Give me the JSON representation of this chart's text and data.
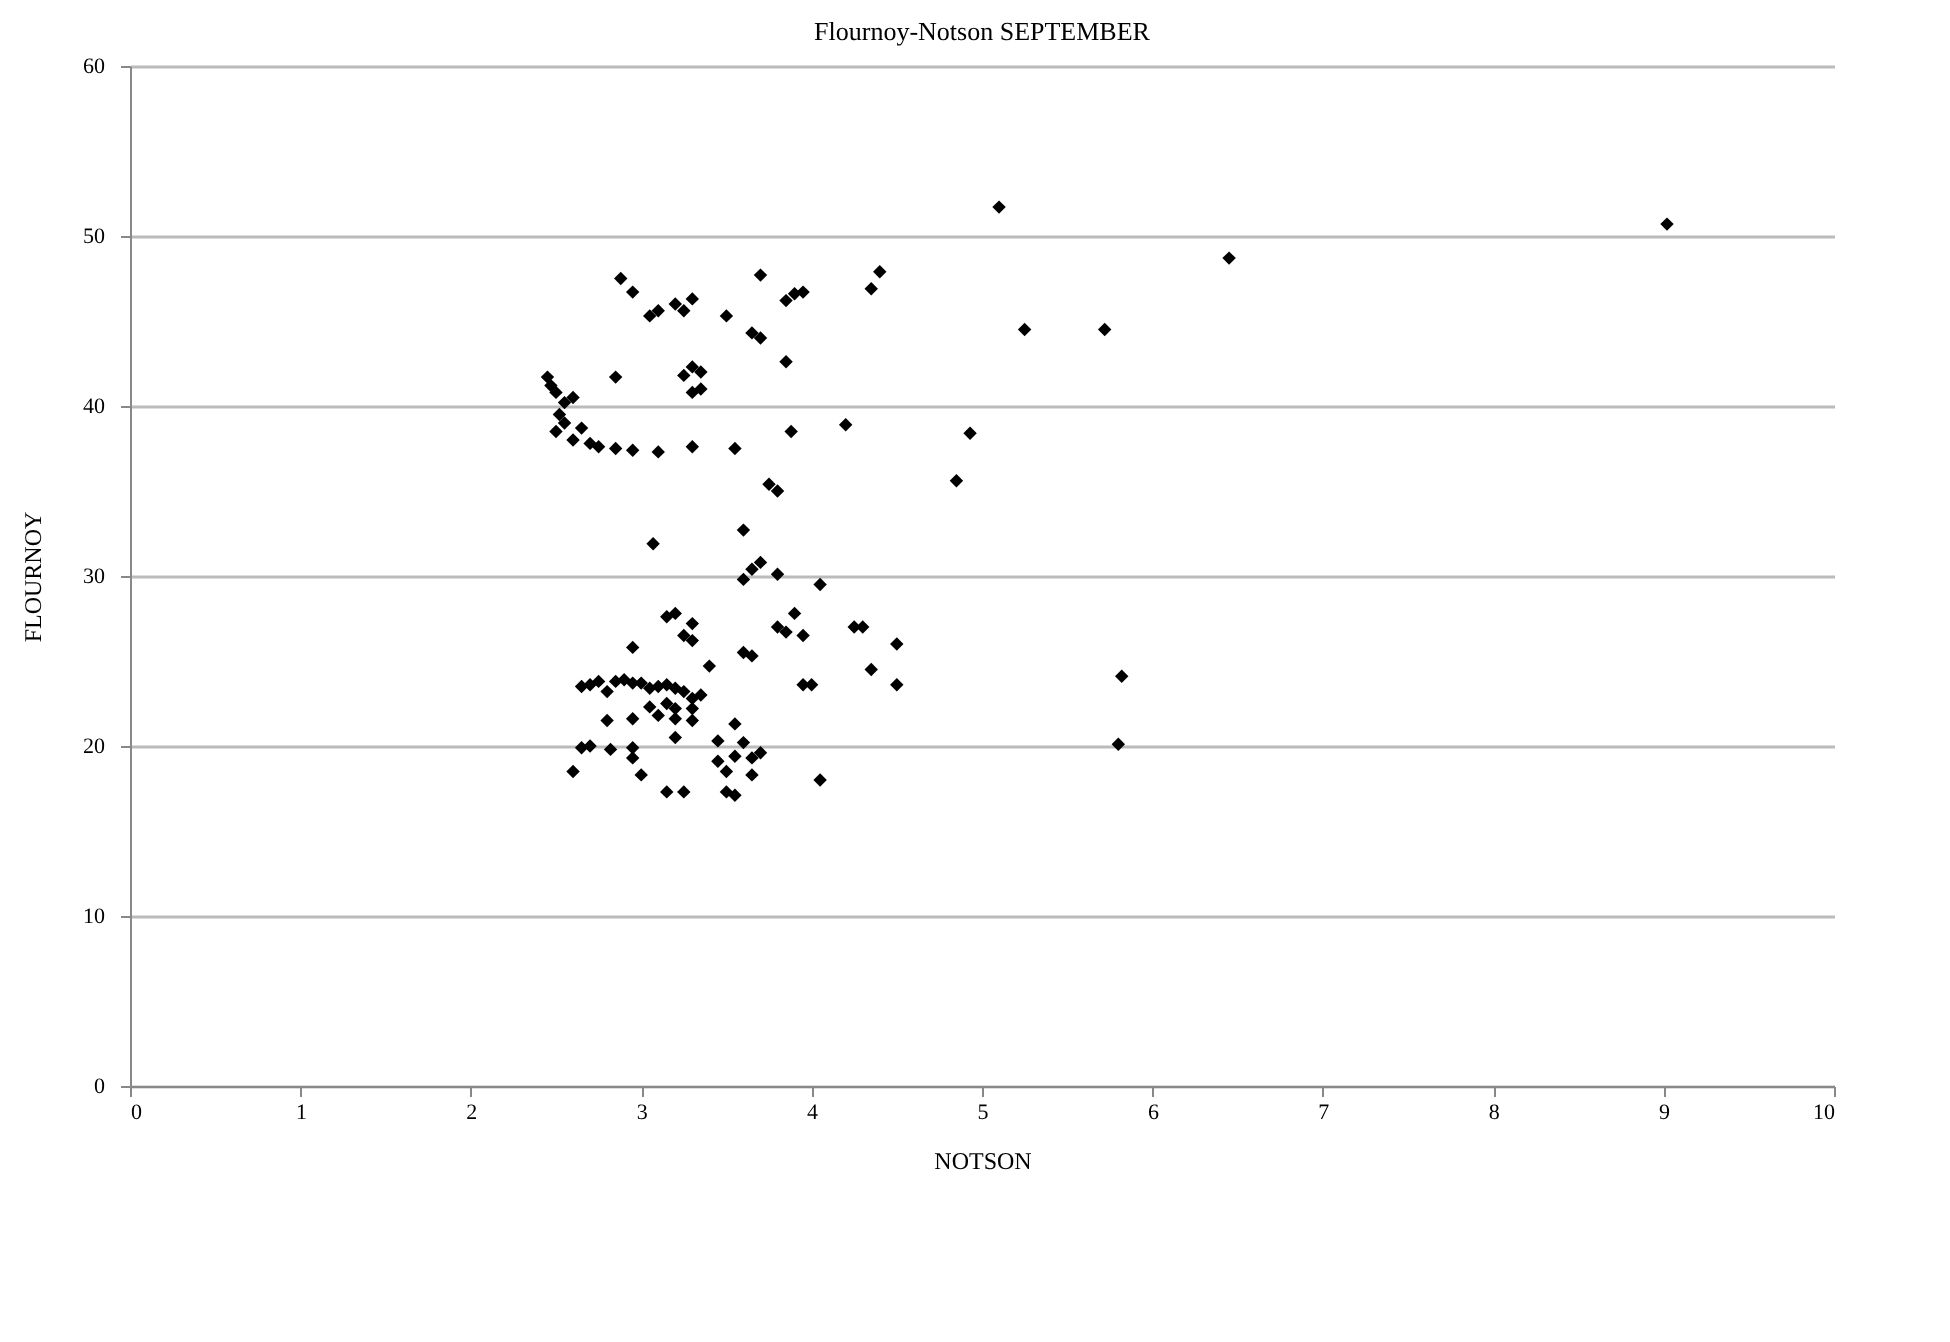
{
  "chart_data": {
    "type": "scatter",
    "title": "Flournoy-Notson  SEPTEMBER",
    "xlabel": "NOTSON",
    "ylabel": "FLOURNOY",
    "xlim": [
      0,
      10
    ],
    "xticks": [
      0,
      1,
      2,
      3,
      4,
      5,
      6,
      7,
      8,
      9,
      10
    ],
    "ylim": [
      0,
      60
    ],
    "yticks": [
      0,
      10,
      20,
      30,
      40,
      50,
      60
    ],
    "grid": "y",
    "marker": "diamond",
    "legend": false,
    "series": [
      {
        "color": "#000000",
        "x": [
          2.45,
          2.47,
          2.5,
          2.55,
          2.6,
          2.52,
          2.5,
          2.55,
          2.6,
          2.65,
          2.7,
          2.75,
          2.85,
          2.95,
          3.1,
          3.3,
          3.55,
          2.85,
          2.88,
          2.95,
          3.05,
          3.1,
          3.2,
          3.25,
          3.3,
          3.25,
          3.3,
          3.35,
          3.35,
          3.3,
          3.5,
          3.65,
          3.7,
          3.7,
          3.85,
          3.9,
          3.95,
          3.85,
          3.88,
          3.75,
          3.8,
          4.2,
          4.35,
          4.4,
          4.85,
          4.93,
          5.1,
          5.25,
          5.72,
          6.45,
          9.02,
          3.07,
          3.6,
          3.6,
          3.65,
          3.7,
          3.8,
          4.05,
          3.8,
          3.85,
          3.9,
          3.95,
          4.25,
          4.3,
          4.5,
          4.35,
          4.5,
          3.95,
          4.0,
          3.6,
          3.65,
          3.4,
          3.15,
          3.2,
          3.25,
          3.3,
          3.3,
          2.95,
          5.82,
          5.8,
          4.05,
          2.65,
          2.7,
          2.75,
          2.8,
          2.85,
          2.9,
          2.95,
          3.0,
          3.05,
          3.1,
          3.15,
          3.2,
          3.25,
          3.3,
          3.15,
          3.2,
          3.3,
          3.35,
          3.05,
          3.1,
          2.8,
          2.95,
          3.2,
          3.3,
          3.55,
          2.65,
          2.7,
          2.6,
          2.82,
          2.95,
          2.95,
          3.0,
          3.15,
          3.25,
          3.45,
          3.5,
          3.5,
          3.55,
          3.55,
          3.6,
          3.65,
          3.65,
          3.7,
          3.2,
          3.45
        ],
        "values": [
          41.7,
          41.2,
          40.8,
          40.2,
          40.5,
          39.5,
          38.5,
          39,
          38,
          38.7,
          37.8,
          37.6,
          37.5,
          37.4,
          37.3,
          37.6,
          37.5,
          41.7,
          47.5,
          46.7,
          45.3,
          45.6,
          46,
          45.6,
          46.3,
          41.8,
          42.3,
          42,
          41,
          40.8,
          45.3,
          44.3,
          44,
          47.7,
          46.2,
          46.6,
          46.7,
          42.6,
          38.5,
          35.4,
          35,
          38.9,
          46.9,
          47.9,
          35.6,
          38.4,
          51.7,
          44.5,
          44.5,
          48.7,
          50.7,
          31.9,
          32.7,
          29.8,
          30.4,
          30.8,
          30.1,
          29.5,
          27,
          26.7,
          27.8,
          26.5,
          27,
          27,
          26,
          24.5,
          23.6,
          23.6,
          23.6,
          25.5,
          25.3,
          24.7,
          27.6,
          27.8,
          26.5,
          27.2,
          26.2,
          25.8,
          24.1,
          20.1,
          18,
          23.5,
          23.6,
          23.8,
          23.2,
          23.8,
          23.9,
          23.7,
          23.7,
          23.4,
          23.5,
          23.6,
          23.4,
          23.2,
          22.8,
          22.5,
          22.2,
          22.2,
          23.0,
          22.3,
          21.8,
          21.5,
          21.6,
          21.6,
          21.5,
          21.3,
          19.9,
          20,
          18.5,
          19.8,
          19.9,
          19.3,
          18.3,
          17.3,
          17.3,
          19.1,
          18.5,
          17.3,
          17.1,
          19.4,
          20.2,
          19.3,
          18.3,
          19.6,
          20.5,
          20.3
        ]
      }
    ]
  }
}
